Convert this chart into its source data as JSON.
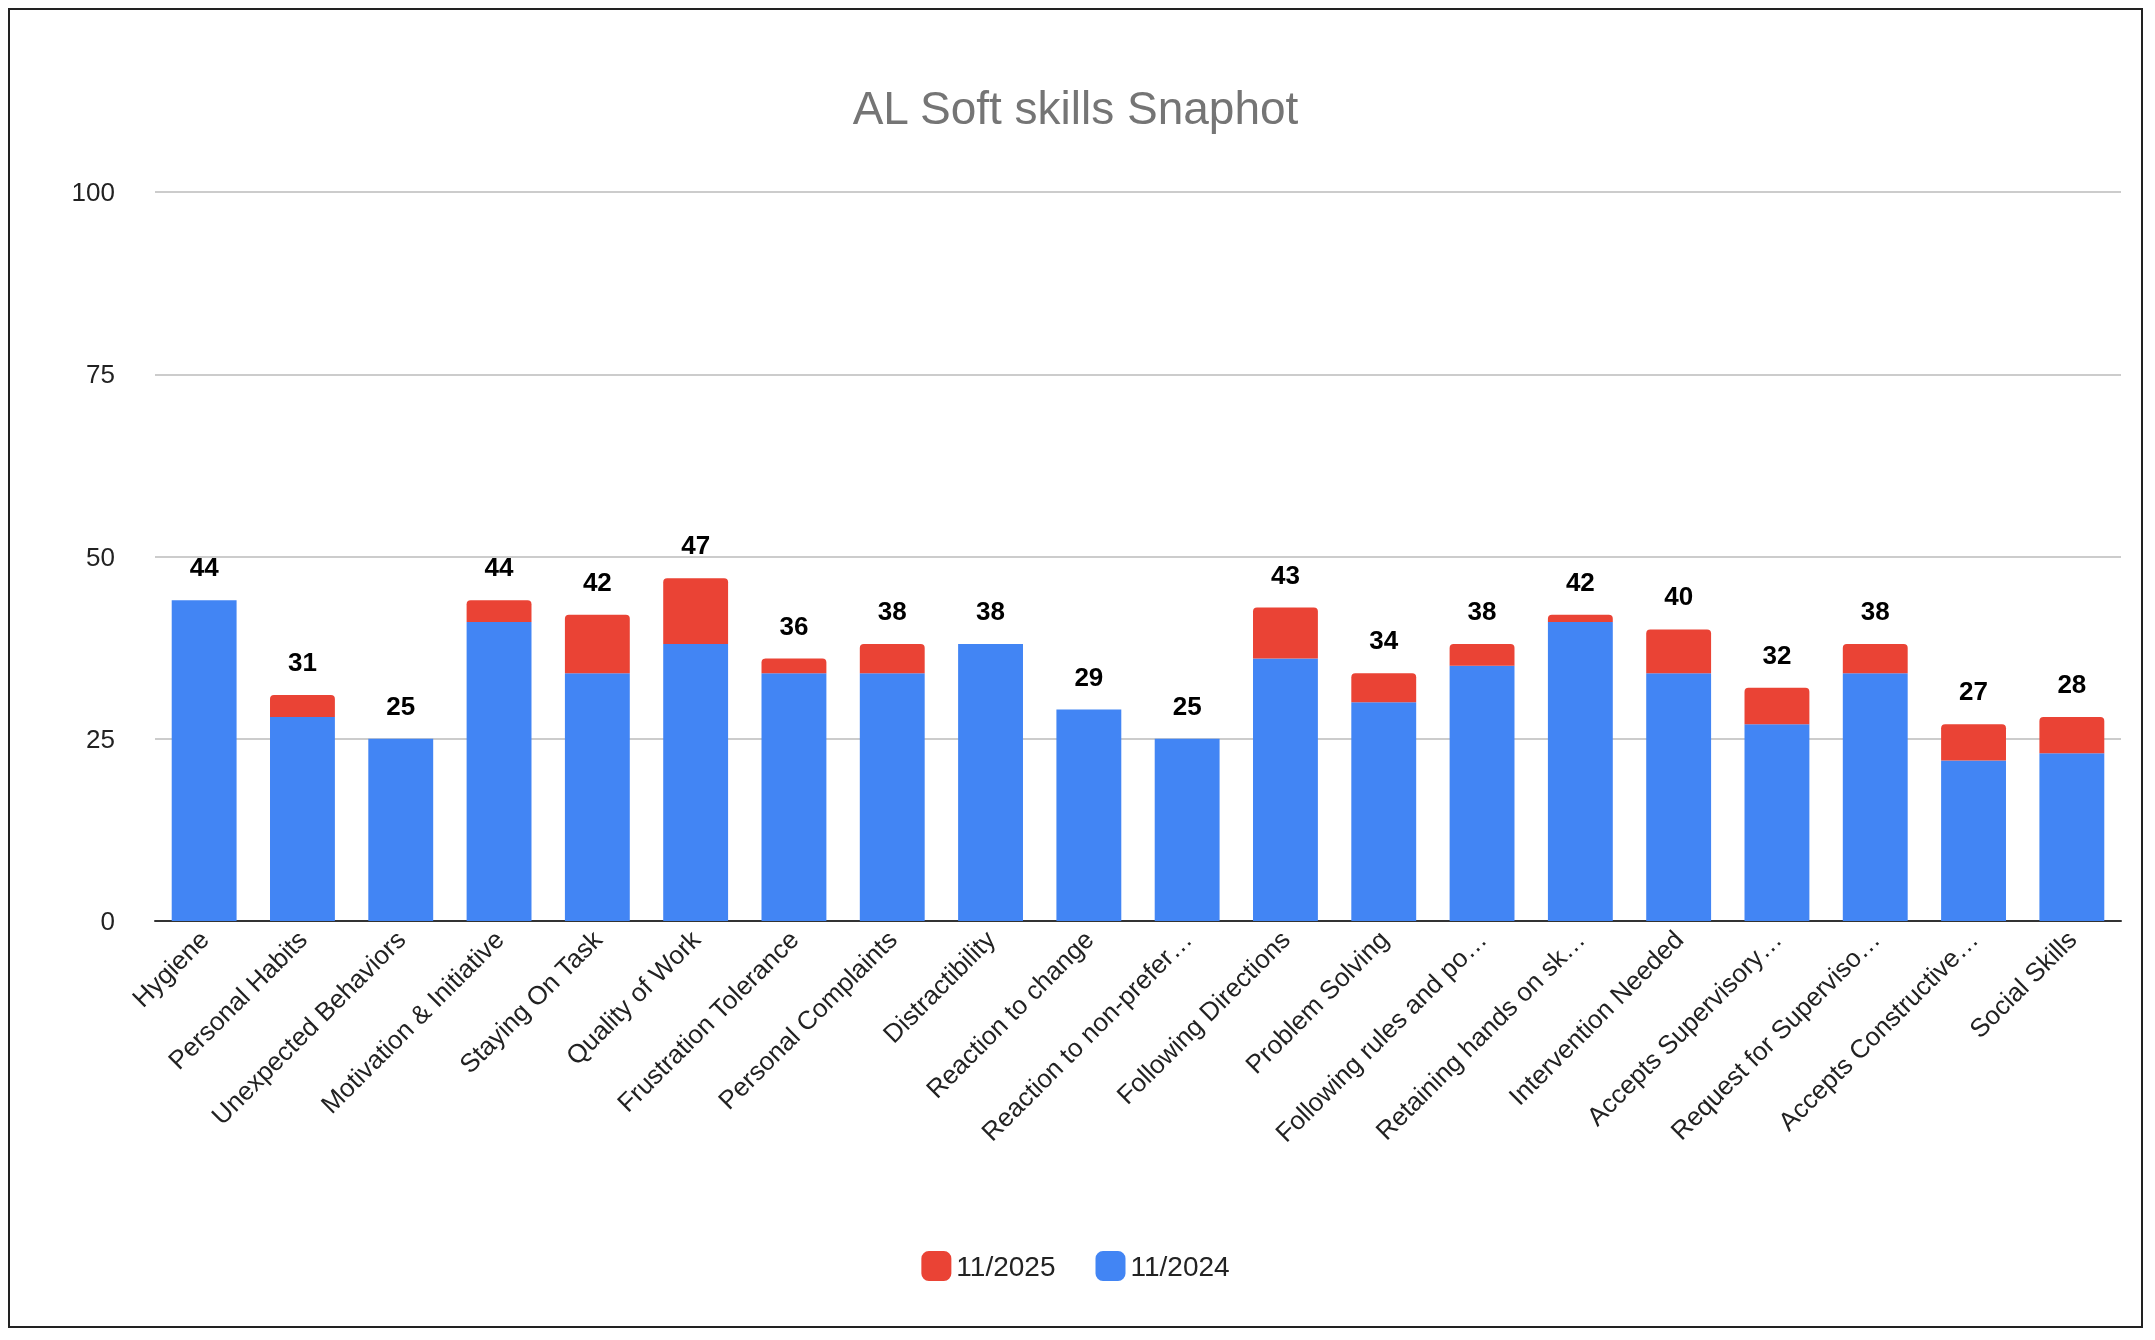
{
  "chart_data": {
    "type": "bar",
    "title": "AL Soft skills Snaphot",
    "categories": [
      "Hygiene",
      "Personal Habits",
      "Unexpected Behaviors",
      "Motivation & Initiative",
      "Staying On Task",
      "Quality of Work",
      "Frustration Tolerance",
      "Personal Complaints",
      "Distractibility",
      "Reaction to change",
      "Reaction to non-prefer…",
      "Following Directions",
      "Problem Solving",
      "Following rules and po…",
      "Retaining hands on sk…",
      "Intervention Needed",
      "Accepts Supervisory…",
      "Request for Superviso…",
      "Accepts Constructive…",
      "Social Skills"
    ],
    "series": [
      {
        "name": "11/2024",
        "color": "#4285f4",
        "values": [
          44,
          28,
          25,
          41,
          34,
          38,
          34,
          34,
          38,
          29,
          25,
          36,
          30,
          35,
          41,
          34,
          27,
          34,
          22,
          23
        ]
      },
      {
        "name": "11/2025",
        "color": "#ea4335",
        "values": [
          0,
          3,
          0,
          3,
          8,
          9,
          2,
          4,
          0,
          0,
          0,
          7,
          4,
          3,
          1,
          6,
          5,
          4,
          5,
          5
        ]
      }
    ],
    "stacked": true,
    "totals": [
      "44",
      "31",
      "25",
      "44",
      "42",
      "47",
      "36",
      "38",
      "38",
      "29",
      "25",
      "43",
      "34",
      "38",
      "42",
      "40",
      "32",
      "38",
      "27",
      "28"
    ],
    "ylim": [
      0,
      100
    ],
    "yticks": [
      0,
      25,
      50,
      75,
      100
    ],
    "grid": "y",
    "legend": "bottom"
  }
}
